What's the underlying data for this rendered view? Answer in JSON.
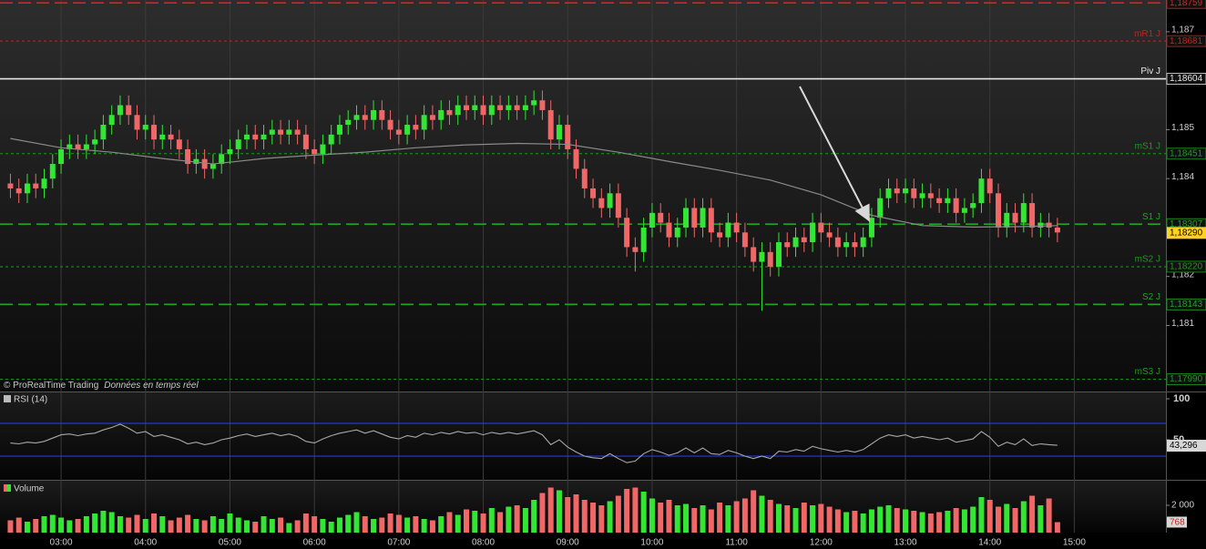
{
  "chart_data": {
    "type": "candlestick",
    "up_color": "#33e633",
    "down_color": "#ef6767",
    "x": [
      144,
      150,
      156,
      162,
      168,
      174,
      180,
      186,
      192,
      198,
      204,
      210,
      216,
      222,
      228,
      234,
      240,
      246,
      252,
      258,
      264,
      270,
      276,
      282,
      288,
      294,
      300,
      306,
      312,
      318,
      324,
      330,
      336,
      342,
      348,
      354,
      360,
      366,
      372,
      378,
      384,
      390,
      396,
      402,
      408,
      414,
      420,
      426,
      432,
      438,
      444,
      450,
      456,
      462,
      468,
      474,
      480,
      486,
      492,
      498,
      504,
      510,
      516,
      522,
      528,
      534,
      540,
      546,
      552,
      558,
      564,
      570,
      576,
      582,
      588,
      594,
      600,
      606,
      612,
      618,
      624,
      630,
      636,
      642,
      648,
      654,
      660,
      666,
      672,
      678,
      684,
      690,
      696,
      702,
      708,
      714,
      720,
      726,
      732,
      738,
      744,
      750,
      756,
      762,
      768,
      774,
      780,
      786,
      792,
      798,
      804,
      810,
      816,
      822,
      828,
      834,
      840,
      846,
      852,
      858,
      864,
      870,
      876,
      882,
      888
    ],
    "open": [
      1.1839,
      1.1838,
      1.1837,
      1.1839,
      1.1838,
      1.184,
      1.1843,
      1.1846,
      1.1847,
      1.1846,
      1.1847,
      1.1848,
      1.1851,
      1.1853,
      1.1855,
      1.1853,
      1.185,
      1.1851,
      1.1848,
      1.1849,
      1.1848,
      1.1846,
      1.1843,
      1.1844,
      1.1842,
      1.1843,
      1.1845,
      1.1846,
      1.1848,
      1.1849,
      1.1848,
      1.1849,
      1.185,
      1.1849,
      1.185,
      1.1849,
      1.1846,
      1.1845,
      1.1847,
      1.1849,
      1.1851,
      1.1852,
      1.1853,
      1.1852,
      1.1854,
      1.1852,
      1.185,
      1.1849,
      1.1851,
      1.185,
      1.1853,
      1.1852,
      1.1854,
      1.1853,
      1.1855,
      1.1854,
      1.1855,
      1.1853,
      1.1855,
      1.1854,
      1.1855,
      1.1854,
      1.1855,
      1.1856,
      1.1854,
      1.1848,
      1.1851,
      1.1846,
      1.1842,
      1.1838,
      1.1836,
      1.1834,
      1.1837,
      1.1832,
      1.1826,
      1.1825,
      1.183,
      1.1833,
      1.1831,
      1.1828,
      1.183,
      1.1834,
      1.183,
      1.1834,
      1.1829,
      1.1828,
      1.1831,
      1.1829,
      1.1826,
      1.1823,
      1.1825,
      1.1822,
      1.1827,
      1.1826,
      1.1828,
      1.1827,
      1.1831,
      1.1829,
      1.1828,
      1.1826,
      1.1827,
      1.1826,
      1.1828,
      1.1832,
      1.1836,
      1.1838,
      1.1837,
      1.1838,
      1.1836,
      1.1837,
      1.1836,
      1.1835,
      1.1836,
      1.1833,
      1.1834,
      1.1835,
      1.184,
      1.1837,
      1.183,
      1.1833,
      1.1831,
      1.1835,
      1.183,
      1.1831,
      1.183
    ],
    "high": [
      1.1841,
      1.184,
      1.1841,
      1.1841,
      1.1842,
      1.1845,
      1.1848,
      1.1849,
      1.1849,
      1.1849,
      1.185,
      1.1853,
      1.1855,
      1.1857,
      1.1857,
      1.1855,
      1.1853,
      1.1853,
      1.1851,
      1.1851,
      1.185,
      1.1848,
      1.1846,
      1.1846,
      1.1845,
      1.1847,
      1.1848,
      1.185,
      1.1851,
      1.1851,
      1.1851,
      1.1852,
      1.1852,
      1.1852,
      1.1852,
      1.1851,
      1.1848,
      1.1849,
      1.1851,
      1.1853,
      1.1854,
      1.1855,
      1.1855,
      1.1856,
      1.1856,
      1.1854,
      1.1852,
      1.1853,
      1.1853,
      1.1855,
      1.1855,
      1.1856,
      1.1856,
      1.1857,
      1.1857,
      1.1857,
      1.1857,
      1.1857,
      1.1857,
      1.1857,
      1.1857,
      1.1857,
      1.1858,
      1.1858,
      1.1856,
      1.1853,
      1.1853,
      1.1848,
      1.1844,
      1.184,
      1.1838,
      1.1839,
      1.1839,
      1.1834,
      1.1828,
      1.1832,
      1.1835,
      1.1835,
      1.1833,
      1.1832,
      1.1836,
      1.1836,
      1.1836,
      1.1836,
      1.1831,
      1.1833,
      1.1833,
      1.1831,
      1.1828,
      1.1827,
      1.1827,
      1.1829,
      1.1829,
      1.183,
      1.183,
      1.1833,
      1.1833,
      1.1831,
      1.183,
      1.1829,
      1.1829,
      1.183,
      1.1834,
      1.1838,
      1.184,
      1.184,
      1.184,
      1.184,
      1.1839,
      1.1839,
      1.1838,
      1.1838,
      1.1838,
      1.1836,
      1.1837,
      1.1842,
      1.1842,
      1.1839,
      1.1835,
      1.1835,
      1.1837,
      1.1837,
      1.1833,
      1.1833,
      1.1832
    ],
    "low": [
      1.1836,
      1.1835,
      1.1835,
      1.1836,
      1.1836,
      1.1838,
      1.1841,
      1.1844,
      1.1844,
      1.1844,
      1.1845,
      1.1846,
      1.1849,
      1.1851,
      1.1851,
      1.1848,
      1.1848,
      1.1846,
      1.1846,
      1.1846,
      1.1844,
      1.1841,
      1.1841,
      1.184,
      1.184,
      1.1841,
      1.1843,
      1.1844,
      1.1846,
      1.1846,
      1.1846,
      1.1847,
      1.1847,
      1.1847,
      1.1847,
      1.1844,
      1.1843,
      1.1843,
      1.1845,
      1.1847,
      1.1849,
      1.185,
      1.185,
      1.185,
      1.185,
      1.1848,
      1.1847,
      1.1847,
      1.1848,
      1.1848,
      1.185,
      1.185,
      1.1851,
      1.1851,
      1.1852,
      1.1852,
      1.1851,
      1.1851,
      1.1852,
      1.1852,
      1.1852,
      1.1852,
      1.1853,
      1.1852,
      1.1846,
      1.1846,
      1.1844,
      1.184,
      1.1836,
      1.1834,
      1.1832,
      1.1832,
      1.183,
      1.1824,
      1.1821,
      1.1823,
      1.1828,
      1.1829,
      1.1826,
      1.1826,
      1.1828,
      1.1828,
      1.1828,
      1.1827,
      1.1826,
      1.1826,
      1.1827,
      1.1824,
      1.1821,
      1.1813,
      1.182,
      1.182,
      1.1824,
      1.1824,
      1.1825,
      1.1825,
      1.1827,
      1.1826,
      1.1824,
      1.1824,
      1.1824,
      1.1824,
      1.1826,
      1.183,
      1.1834,
      1.1835,
      1.1835,
      1.1834,
      1.1834,
      1.1834,
      1.1833,
      1.1833,
      1.1831,
      1.1831,
      1.1832,
      1.1833,
      1.1835,
      1.1828,
      1.1828,
      1.1829,
      1.1829,
      1.1828,
      1.1828,
      1.1828,
      1.1827
    ],
    "close": [
      1.1838,
      1.1837,
      1.1839,
      1.1838,
      1.184,
      1.1843,
      1.1846,
      1.1847,
      1.1846,
      1.1847,
      1.1848,
      1.1851,
      1.1853,
      1.1855,
      1.1853,
      1.185,
      1.1851,
      1.1848,
      1.1849,
      1.1848,
      1.1846,
      1.1843,
      1.1844,
      1.1842,
      1.1843,
      1.1845,
      1.1846,
      1.1848,
      1.1849,
      1.1848,
      1.1849,
      1.185,
      1.1849,
      1.185,
      1.1849,
      1.1846,
      1.1845,
      1.1847,
      1.1849,
      1.1851,
      1.1852,
      1.1853,
      1.1852,
      1.1854,
      1.1852,
      1.185,
      1.1849,
      1.1851,
      1.185,
      1.1853,
      1.1852,
      1.1854,
      1.1853,
      1.1855,
      1.1854,
      1.1855,
      1.1853,
      1.1855,
      1.1854,
      1.1855,
      1.1854,
      1.1855,
      1.1856,
      1.1854,
      1.1848,
      1.1851,
      1.1846,
      1.1842,
      1.1838,
      1.1836,
      1.1834,
      1.1837,
      1.1832,
      1.1826,
      1.1825,
      1.183,
      1.1833,
      1.1831,
      1.1828,
      1.183,
      1.1834,
      1.183,
      1.1834,
      1.1829,
      1.1828,
      1.1831,
      1.1829,
      1.1826,
      1.1823,
      1.1825,
      1.1822,
      1.1827,
      1.1826,
      1.1828,
      1.1827,
      1.1831,
      1.1829,
      1.1828,
      1.1826,
      1.1827,
      1.1826,
      1.1828,
      1.1832,
      1.1836,
      1.1838,
      1.1837,
      1.1838,
      1.1836,
      1.1837,
      1.1836,
      1.1835,
      1.1836,
      1.1833,
      1.1834,
      1.1835,
      1.184,
      1.1837,
      1.183,
      1.1833,
      1.1831,
      1.1835,
      1.183,
      1.1831,
      1.183,
      1.1829
    ],
    "xlim": [
      136.6,
      965.1
    ],
    "xticks": [
      {
        "value": 180,
        "label": "03:00"
      },
      {
        "value": 240,
        "label": "04:00"
      },
      {
        "value": 300,
        "label": "05:00"
      },
      {
        "value": 360,
        "label": "06:00"
      },
      {
        "value": 420,
        "label": "07:00"
      },
      {
        "value": 480,
        "label": "08:00"
      },
      {
        "value": 540,
        "label": "09:00"
      },
      {
        "value": 600,
        "label": "10:00"
      },
      {
        "value": 660,
        "label": "11:00"
      },
      {
        "value": 720,
        "label": "12:00"
      },
      {
        "value": 780,
        "label": "13:00"
      },
      {
        "value": 840,
        "label": "14:00"
      },
      {
        "value": 900,
        "label": "15:00"
      }
    ],
    "ylim": [
      1.17965,
      1.18765
    ],
    "yticks": [
      {
        "value": 1.187,
        "label": "1,187"
      },
      {
        "value": 1.185,
        "label": "1,185"
      },
      {
        "value": 1.184,
        "label": "1,184"
      },
      {
        "value": 1.182,
        "label": "1,182"
      },
      {
        "value": 1.181,
        "label": "1,181"
      }
    ],
    "levels": [
      {
        "value": 1.18759,
        "label": "1,18759",
        "color": "#e02020",
        "style": "dashed"
      },
      {
        "name": "mR1 J",
        "value": 1.18681,
        "label": "1,18681",
        "color": "#c42222",
        "style": "dotted"
      },
      {
        "name": "Piv J",
        "value": 1.18604,
        "label": "1,18604",
        "color": "#e6e6e6",
        "style": "solid"
      },
      {
        "name": "mS1 J",
        "value": 1.18451,
        "label": "1,18451",
        "color": "#1e9a1e",
        "style": "dotted"
      },
      {
        "name": "S1 J",
        "value": 1.18307,
        "label": "1,18307",
        "color": "#1fa51f",
        "style": "dashed"
      },
      {
        "name": "mS2 J",
        "value": 1.1822,
        "label": "1,18220",
        "color": "#1e9a1e",
        "style": "dotted"
      },
      {
        "name": "S2 J",
        "value": 1.18143,
        "label": "1,18143",
        "color": "#1fa51f",
        "style": "dashed"
      },
      {
        "name": "mS3 J",
        "value": 1.1799,
        "label": "1,17990",
        "color": "#1e9a1e",
        "style": "dotted"
      }
    ],
    "last": {
      "value": 1.1829,
      "label": "1,18290"
    },
    "ma": {
      "color": "#8a8a8a",
      "x": [
        144,
        180,
        216,
        252,
        288,
        324,
        360,
        396,
        432,
        468,
        504,
        540,
        576,
        612,
        648,
        684,
        720,
        756,
        792,
        828,
        864,
        888
      ],
      "values": [
        1.18482,
        1.18463,
        1.18454,
        1.18441,
        1.1843,
        1.18441,
        1.18448,
        1.18454,
        1.18463,
        1.18469,
        1.18472,
        1.1847,
        1.18454,
        1.18435,
        1.18417,
        1.18397,
        1.18367,
        1.18325,
        1.18304,
        1.18301,
        1.18302,
        1.18304
      ]
    },
    "credit": "© ProRealTime Trading",
    "credit_note": "Données en temps réel",
    "rsi": {
      "name": "RSI (14)",
      "color": "#a8a8a8",
      "band_color": "#2b3cff",
      "ylim": [
        0,
        100
      ],
      "yticks": [
        100,
        50
      ],
      "bands": [
        70,
        30
      ],
      "values": [
        46,
        45,
        47,
        46,
        48,
        52,
        56,
        57,
        55,
        57,
        58,
        62,
        65,
        69,
        64,
        58,
        60,
        54,
        56,
        53,
        50,
        45,
        47,
        44,
        46,
        50,
        52,
        55,
        57,
        54,
        56,
        58,
        55,
        57,
        54,
        48,
        46,
        51,
        55,
        58,
        60,
        62,
        58,
        61,
        57,
        53,
        51,
        55,
        53,
        58,
        56,
        59,
        57,
        60,
        58,
        59,
        56,
        59,
        57,
        59,
        57,
        59,
        61,
        56,
        44,
        50,
        41,
        35,
        30,
        28,
        27,
        33,
        27,
        22,
        24,
        33,
        38,
        35,
        31,
        34,
        40,
        34,
        40,
        33,
        32,
        37,
        34,
        30,
        27,
        30,
        27,
        36,
        35,
        38,
        36,
        42,
        39,
        37,
        35,
        37,
        35,
        38,
        45,
        52,
        56,
        54,
        56,
        52,
        54,
        52,
        50,
        52,
        47,
        49,
        51,
        60,
        53,
        42,
        47,
        44,
        51,
        43,
        45,
        44,
        43.296
      ],
      "last": {
        "value": 43.296,
        "label": "43,296"
      }
    },
    "volume": {
      "name": "Volume",
      "ylim": [
        0,
        3800
      ],
      "yticks": [
        {
          "value": 2000,
          "label": "2 000"
        }
      ],
      "values": [
        900,
        1100,
        800,
        1000,
        1200,
        1300,
        1100,
        900,
        1000,
        1200,
        1400,
        1600,
        1500,
        1200,
        1100,
        1300,
        1000,
        1400,
        1200,
        900,
        1100,
        1300,
        1000,
        900,
        1200,
        1000,
        1400,
        1100,
        900,
        800,
        1200,
        1000,
        1100,
        700,
        900,
        1400,
        1200,
        1000,
        800,
        1100,
        1300,
        1500,
        1200,
        1000,
        1100,
        1400,
        1300,
        1100,
        1200,
        1000,
        900,
        1200,
        1500,
        1300,
        1700,
        1600,
        1400,
        1800,
        1500,
        1900,
        2000,
        1800,
        2400,
        2900,
        3300,
        3100,
        2600,
        2800,
        2400,
        2200,
        2000,
        2300,
        2700,
        3200,
        3300,
        3000,
        2500,
        2200,
        2400,
        2000,
        2100,
        1800,
        2000,
        1700,
        2200,
        2000,
        2300,
        2500,
        3100,
        2700,
        2400,
        2100,
        2000,
        1800,
        2200,
        2000,
        2100,
        1900,
        1700,
        1500,
        1600,
        1400,
        1700,
        1900,
        2000,
        1800,
        1700,
        1600,
        1500,
        1400,
        1500,
        1600,
        1800,
        1700,
        1900,
        2600,
        2400,
        1900,
        2100,
        1800,
        2300,
        2700,
        2000,
        2500,
        768
      ]
    }
  }
}
